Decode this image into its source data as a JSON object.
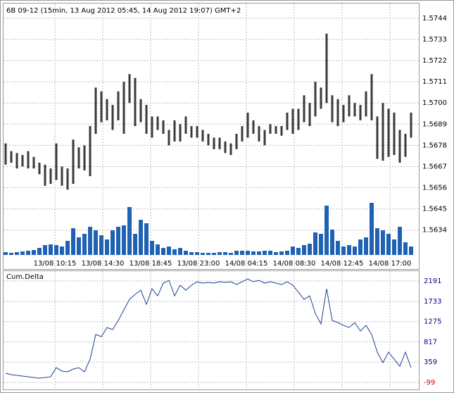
{
  "chart_data": [
    {
      "type": "range_bar",
      "title": "6B 09-12 (15min, 13 Aug 2012 05:45, 14 Aug 2012 19:07) GMT+2",
      "color": "#3a3a3a",
      "high": [
        1.5679,
        1.5675,
        1.5674,
        1.5673,
        1.5675,
        1.5672,
        1.5669,
        1.5668,
        1.5666,
        1.5679,
        1.5667,
        1.5666,
        1.5681,
        1.5677,
        1.5678,
        1.5688,
        1.5708,
        1.5706,
        1.5702,
        1.5699,
        1.5706,
        1.5711,
        1.5715,
        1.5713,
        1.5702,
        1.5699,
        1.5693,
        1.5693,
        1.5691,
        1.5686,
        1.5691,
        1.5689,
        1.5693,
        1.5688,
        1.5688,
        1.5686,
        1.5684,
        1.5682,
        1.5682,
        1.568,
        1.5679,
        1.5684,
        1.5688,
        1.5695,
        1.5691,
        1.5688,
        1.5686,
        1.5689,
        1.5688,
        1.5688,
        1.5695,
        1.5697,
        1.5697,
        1.5704,
        1.57,
        1.5711,
        1.5708,
        1.5736,
        1.5704,
        1.5702,
        1.5699,
        1.5704,
        1.57,
        1.5699,
        1.5706,
        1.5715,
        1.5693,
        1.57,
        1.5697,
        1.5695,
        1.5686,
        1.5684,
        1.5695
      ],
      "low": [
        1.5668,
        1.5669,
        1.5666,
        1.5667,
        1.5666,
        1.5666,
        1.5663,
        1.5657,
        1.5658,
        1.566,
        1.5657,
        1.5655,
        1.5658,
        1.5666,
        1.5665,
        1.5662,
        1.5684,
        1.569,
        1.5691,
        1.5686,
        1.5691,
        1.5684,
        1.57,
        1.5688,
        1.569,
        1.5684,
        1.5682,
        1.5686,
        1.5684,
        1.5678,
        1.568,
        1.568,
        1.5684,
        1.5682,
        1.5682,
        1.568,
        1.5678,
        1.5676,
        1.5676,
        1.5674,
        1.5673,
        1.5676,
        1.568,
        1.5682,
        1.5684,
        1.568,
        1.5678,
        1.5684,
        1.5684,
        1.5683,
        1.5686,
        1.5684,
        1.5686,
        1.569,
        1.5688,
        1.5693,
        1.5697,
        1.57,
        1.569,
        1.5688,
        1.569,
        1.5693,
        1.5693,
        1.5691,
        1.5693,
        1.5691,
        1.5671,
        1.567,
        1.5672,
        1.5673,
        1.5669,
        1.5672,
        1.5682
      ],
      "volume": {
        "color": "#1f62b4",
        "values": [
          4,
          3,
          4,
          5,
          6,
          7,
          10,
          14,
          15,
          14,
          12,
          20,
          38,
          25,
          30,
          40,
          35,
          28,
          22,
          35,
          40,
          42,
          68,
          30,
          50,
          45,
          20,
          15,
          10,
          12,
          8,
          10,
          6,
          4,
          4,
          3,
          3,
          3,
          4,
          4,
          3,
          6,
          6,
          6,
          5,
          5,
          6,
          6,
          4,
          5,
          6,
          12,
          10,
          14,
          16,
          32,
          30,
          70,
          36,
          20,
          12,
          14,
          12,
          22,
          25,
          74,
          38,
          35,
          30,
          22,
          40,
          18,
          12
        ]
      },
      "ylim": [
        1.562,
        1.5752
      ],
      "yticks": [
        1.5744,
        1.5733,
        1.5722,
        1.5711,
        {
          "value": 1.57,
          "label": "1.5700"
        },
        1.5689,
        1.5678,
        1.5667,
        1.5656,
        1.5645,
        1.5634
      ],
      "xticks": [
        {
          "value": 8.75,
          "label": "13/08 10:15"
        },
        {
          "value": 17.25,
          "label": "13/08 14:30"
        },
        {
          "value": 25.75,
          "label": "13/08 18:45"
        },
        {
          "value": 34.25,
          "label": "13/08 23:00"
        },
        {
          "value": 42.75,
          "label": "14/08 04:15"
        },
        {
          "value": 51.25,
          "label": "14/08 08:30"
        },
        {
          "value": 59.75,
          "label": "14/08 12:45"
        },
        {
          "value": 68.25,
          "label": "14/08 17:00"
        }
      ],
      "grid": true
    },
    {
      "type": "line",
      "title": "Cum.Delta",
      "color": "#1c3f94",
      "values": [
        108,
        76,
        60,
        44,
        29,
        13,
        -3,
        13,
        29,
        235,
        156,
        140,
        203,
        235,
        140,
        426,
        983,
        935,
        1142,
        1094,
        1301,
        1539,
        1778,
        1889,
        1984,
        1666,
        2016,
        1857,
        2143,
        2207,
        1857,
        2096,
        1984,
        2096,
        2175,
        2143,
        2159,
        2143,
        2175,
        2159,
        2175,
        2112,
        2175,
        2239,
        2175,
        2207,
        2143,
        2175,
        2143,
        2112,
        2175,
        2096,
        1937,
        1778,
        1857,
        1460,
        1221,
        2016,
        1301,
        1253,
        1190,
        1142,
        1253,
        1062,
        1190,
        983,
        585,
        347,
        585,
        426,
        267,
        585,
        235
      ],
      "ylim": [
        -274,
        2414
      ],
      "yticks": [
        2191,
        1733,
        1275,
        817,
        359,
        -99
      ],
      "tick_color": "#000080",
      "negative_tick_color": "#cc0000",
      "grid": true
    }
  ]
}
